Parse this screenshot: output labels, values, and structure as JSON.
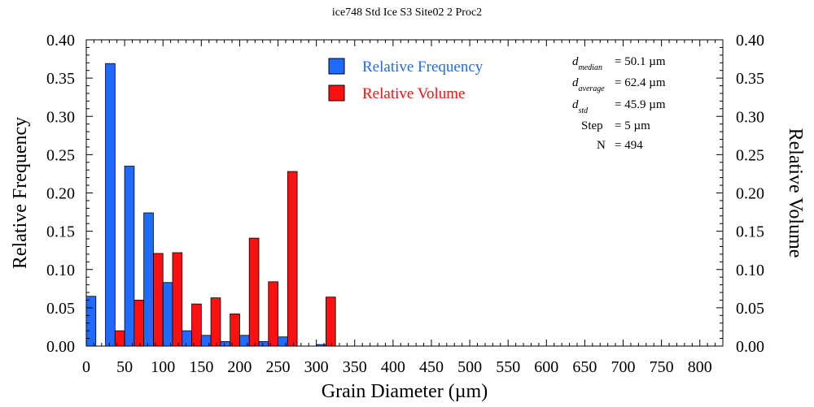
{
  "chart_data": {
    "type": "bar",
    "title": "ice748 Std Ice S3 Site02 2 Proc2",
    "xlabel": "Grain Diameter (µm)",
    "ylabel_left": "Relative Frequency",
    "ylabel_right": "Relative Volume",
    "xlim": [
      0,
      830
    ],
    "ylim": [
      0,
      0.4
    ],
    "x_ticks": [
      "0",
      "50",
      "100",
      "150",
      "200",
      "250",
      "300",
      "350",
      "400",
      "450",
      "500",
      "550",
      "600",
      "650",
      "700",
      "750",
      "800"
    ],
    "y_ticks": [
      "0.00",
      "0.05",
      "0.10",
      "0.15",
      "0.20",
      "0.25",
      "0.30",
      "0.35",
      "0.40"
    ],
    "bin_centers": [
      12.5,
      37.5,
      62.5,
      87.5,
      112.5,
      137.5,
      162.5,
      187.5,
      212.5,
      237.5,
      262.5,
      287.5,
      312.5
    ],
    "series": [
      {
        "name": "Relative Frequency",
        "color": "#1f6bff",
        "values": [
          0.065,
          0.369,
          0.235,
          0.174,
          0.083,
          0.02,
          0.014,
          0.006,
          0.014,
          0.006,
          0.012,
          0.0,
          0.002
        ]
      },
      {
        "name": "Relative Volume",
        "color": "#ff1010",
        "values": [
          0.0,
          0.02,
          0.06,
          0.121,
          0.122,
          0.055,
          0.063,
          0.042,
          0.141,
          0.084,
          0.228,
          0.0,
          0.064
        ]
      }
    ],
    "legend_position": "top-center",
    "grid": false
  },
  "stats": {
    "median": {
      "symbol": "d",
      "sub": "median",
      "value": "=  50.1 µm"
    },
    "average": {
      "symbol": "d",
      "sub": "average",
      "value": "=  62.4 µm"
    },
    "std": {
      "symbol": "d",
      "sub": "std",
      "value": "=  45.9 µm"
    },
    "step": {
      "label": "Step",
      "value": "=  5 µm"
    },
    "n": {
      "label": "N",
      "value": "= 494"
    }
  }
}
